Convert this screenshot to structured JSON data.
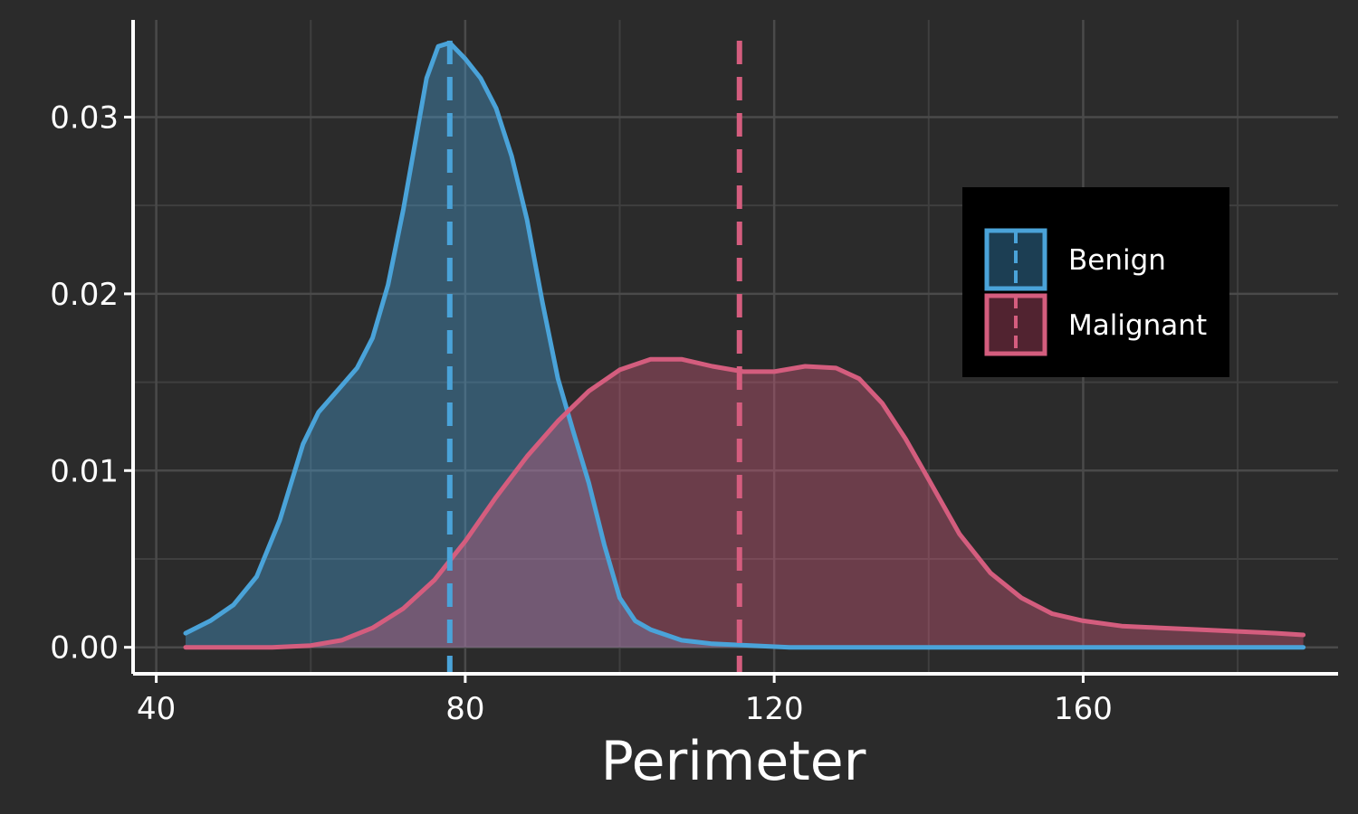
{
  "chart_data": {
    "type": "area",
    "title": "",
    "xlabel": "Perimeter",
    "ylabel": "",
    "xlim": [
      37,
      193
    ],
    "ylim": [
      -0.0015,
      0.0355
    ],
    "x_ticks": [
      40,
      80,
      120,
      160
    ],
    "x_tick_labels": [
      "40",
      "80",
      "120",
      "160"
    ],
    "y_ticks": [
      0,
      0.01,
      0.02,
      0.03
    ],
    "y_tick_labels": [
      "0.00",
      "0.01",
      "0.02",
      "0.03"
    ],
    "grid": true,
    "legend_position": "right",
    "series": [
      {
        "name": "Benign",
        "color": "#4aa3d9",
        "fill": "#2c5570",
        "mean": 78,
        "points": [
          [
            43.8,
            0.0008
          ],
          [
            47,
            0.0015
          ],
          [
            50,
            0.0024
          ],
          [
            53,
            0.004
          ],
          [
            56,
            0.0072
          ],
          [
            59,
            0.0115
          ],
          [
            61,
            0.0133
          ],
          [
            64,
            0.0148
          ],
          [
            66,
            0.0158
          ],
          [
            68,
            0.0175
          ],
          [
            70,
            0.0205
          ],
          [
            72,
            0.0248
          ],
          [
            73.5,
            0.0285
          ],
          [
            75,
            0.0322
          ],
          [
            76.5,
            0.034
          ],
          [
            78,
            0.0342
          ],
          [
            80,
            0.0333
          ],
          [
            82,
            0.0322
          ],
          [
            84,
            0.0305
          ],
          [
            86,
            0.0278
          ],
          [
            88,
            0.0242
          ],
          [
            90,
            0.0195
          ],
          [
            92,
            0.0152
          ],
          [
            94,
            0.0122
          ],
          [
            96,
            0.0093
          ],
          [
            98,
            0.0058
          ],
          [
            100,
            0.0028
          ],
          [
            102,
            0.0015
          ],
          [
            104,
            0.001
          ],
          [
            106,
            0.0007
          ],
          [
            108,
            0.0004
          ],
          [
            112,
            0.0002
          ],
          [
            117,
            0.0001
          ],
          [
            122,
            0.0
          ],
          [
            130,
            0.0
          ],
          [
            140,
            0.0
          ],
          [
            150,
            0.0
          ],
          [
            160,
            0.0
          ],
          [
            170,
            0.0
          ],
          [
            180,
            0.0
          ],
          [
            188.5,
            0.0
          ]
        ]
      },
      {
        "name": "Malignant",
        "color": "#d45d7e",
        "fill": "#6b3645",
        "mean": 115.5,
        "points": [
          [
            43.8,
            0.0
          ],
          [
            50,
            0.0
          ],
          [
            55,
            0.0
          ],
          [
            60,
            0.0001
          ],
          [
            64,
            0.0004
          ],
          [
            68,
            0.0011
          ],
          [
            72,
            0.0022
          ],
          [
            76,
            0.0038
          ],
          [
            80,
            0.006
          ],
          [
            84,
            0.0085
          ],
          [
            88,
            0.0108
          ],
          [
            92,
            0.0128
          ],
          [
            96,
            0.0145
          ],
          [
            100,
            0.0157
          ],
          [
            104,
            0.0163
          ],
          [
            108,
            0.0163
          ],
          [
            112,
            0.0159
          ],
          [
            116,
            0.0156
          ],
          [
            120,
            0.0156
          ],
          [
            124,
            0.0159
          ],
          [
            128,
            0.0158
          ],
          [
            131,
            0.0152
          ],
          [
            134,
            0.0138
          ],
          [
            137,
            0.0118
          ],
          [
            140,
            0.0095
          ],
          [
            144,
            0.0064
          ],
          [
            148,
            0.0042
          ],
          [
            152,
            0.0028
          ],
          [
            156,
            0.0019
          ],
          [
            160,
            0.0015
          ],
          [
            165,
            0.0012
          ],
          [
            170,
            0.0011
          ],
          [
            175,
            0.001
          ],
          [
            180,
            0.0009
          ],
          [
            185,
            0.0008
          ],
          [
            188.5,
            0.0007
          ]
        ]
      }
    ]
  }
}
